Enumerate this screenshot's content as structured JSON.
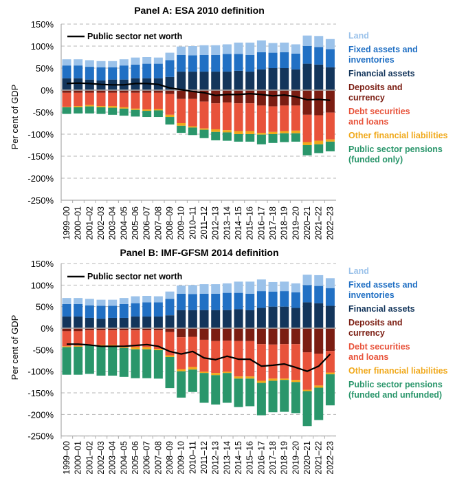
{
  "chart_data": [
    {
      "type": "bar",
      "stacked": true,
      "title": "Panel A: ESA 2010 definition",
      "ylabel": "Per cent of GDP",
      "ylim": [
        -250,
        150
      ],
      "yticks": [
        "150%",
        "100%",
        "50%",
        "0%",
        "-50%",
        "-100%",
        "-150%",
        "-200%",
        "-250%"
      ],
      "ytick_values": [
        150,
        100,
        50,
        0,
        -50,
        -100,
        -150,
        -200,
        -250
      ],
      "grid": true,
      "legend_placement": "right",
      "categories": [
        "1999–00",
        "2000–01",
        "2001–02",
        "2002–03",
        "2003–04",
        "2004–05",
        "2005–06",
        "2006–07",
        "2007–08",
        "2008–09",
        "2009–10",
        "2010–11",
        "2011–12",
        "2012–13",
        "2013–14",
        "2014–15",
        "2015–16",
        "2016–17",
        "2017–18",
        "2018–19",
        "2019–20",
        "2020–21",
        "2021–22",
        "2022–23"
      ],
      "series": [
        {
          "name": "Financial assets",
          "color": "#13355b",
          "values": [
            27,
            27,
            24,
            22,
            24,
            24,
            27,
            27,
            27,
            30,
            42,
            42,
            42,
            42,
            42,
            44,
            42,
            47,
            50,
            50,
            47,
            60,
            58,
            52
          ]
        },
        {
          "name": "Fixed assets and inventories",
          "color": "#2170c4",
          "values": [
            29,
            29,
            29,
            30,
            28,
            32,
            31,
            33,
            33,
            38,
            38,
            37,
            38,
            38,
            40,
            38,
            38,
            39,
            35,
            36,
            36,
            40,
            40,
            41
          ]
        },
        {
          "name": "Land",
          "color": "#9bc2ea",
          "values": [
            14,
            14,
            15,
            14,
            14,
            14,
            16,
            15,
            14,
            17,
            19,
            21,
            22,
            22,
            22,
            26,
            28,
            27,
            22,
            22,
            21,
            24,
            25,
            23
          ]
        },
        {
          "name": "Deposits and currency",
          "color": "#7b1d12",
          "values": [
            -6,
            -6,
            -6,
            -6,
            -6,
            -6,
            -6,
            -6,
            -6,
            -9,
            -20,
            -20,
            -26,
            -30,
            -28,
            -30,
            -30,
            -35,
            -37,
            -35,
            -35,
            -56,
            -57,
            -51
          ]
        },
        {
          "name": "Debt securities and loans",
          "color": "#e8533b",
          "values": [
            -32,
            -30,
            -28,
            -30,
            -30,
            -33,
            -36,
            -38,
            -37,
            -47,
            -55,
            -62,
            -61,
            -59,
            -63,
            -63,
            -63,
            -62,
            -58,
            -58,
            -57,
            -62,
            -58,
            -61
          ]
        },
        {
          "name": "Other financial liabilities",
          "color": "#f0a91c",
          "values": [
            -1,
            -3,
            -3,
            -3,
            -4,
            -3,
            -3,
            -3,
            -3,
            -5,
            -6,
            -3,
            -3,
            -6,
            -5,
            -7,
            -7,
            -4,
            -5,
            -5,
            -6,
            -7,
            -8,
            -5
          ]
        },
        {
          "name": "Public sector pensions (funded only)",
          "color": "#2a966b",
          "values": [
            -15,
            -14,
            -16,
            -15,
            -16,
            -16,
            -15,
            -14,
            -15,
            -17,
            -16,
            -17,
            -19,
            -19,
            -19,
            -17,
            -17,
            -22,
            -20,
            -20,
            -19,
            -23,
            -20,
            -22
          ]
        }
      ],
      "line": {
        "name": "Public sector net worth",
        "color": "#000000",
        "values": [
          15,
          16,
          15,
          13,
          12,
          12,
          15,
          15,
          13,
          5,
          1,
          -3,
          -6,
          -12,
          -10,
          -10,
          -8,
          -10,
          -13,
          -11,
          -15,
          -22,
          -21,
          -23
        ]
      },
      "legend_lines": [
        [
          "Land"
        ],
        [
          "Fixed assets and",
          "inventories"
        ],
        [
          "Financial assets"
        ],
        [
          "Deposits and",
          "currency"
        ],
        [
          "Debt securities",
          "and loans"
        ],
        [
          "Other financial liabilities"
        ],
        [
          "Public sector pensions",
          "(funded only)"
        ]
      ]
    },
    {
      "type": "bar",
      "stacked": true,
      "title": "Panel B: IMF-GFSM 2014 definition",
      "ylabel": "Per cent of GDP",
      "ylim": [
        -250,
        150
      ],
      "yticks": [
        "150%",
        "100%",
        "50%",
        "0%",
        "-50%",
        "-100%",
        "-150%",
        "-200%",
        "-250%"
      ],
      "ytick_values": [
        150,
        100,
        50,
        0,
        -50,
        -100,
        -150,
        -200,
        -250
      ],
      "grid": true,
      "legend_placement": "right",
      "categories": [
        "1999–00",
        "2000–01",
        "2001–02",
        "2002–03",
        "2003–04",
        "2004–05",
        "2005–06",
        "2006–07",
        "2007–08",
        "2008–09",
        "2009–10",
        "2010–11",
        "2011–12",
        "2012–13",
        "2013–14",
        "2014–15",
        "2015–16",
        "2016–17",
        "2017–18",
        "2018–19",
        "2019–20",
        "2020–21",
        "2021–22",
        "2022–23"
      ],
      "series": [
        {
          "name": "Financial assets",
          "color": "#13355b",
          "values": [
            27,
            27,
            24,
            22,
            24,
            24,
            27,
            27,
            27,
            30,
            42,
            42,
            42,
            42,
            42,
            44,
            42,
            47,
            50,
            50,
            47,
            60,
            58,
            52
          ]
        },
        {
          "name": "Fixed assets and inventories",
          "color": "#2170c4",
          "values": [
            29,
            29,
            29,
            30,
            28,
            32,
            31,
            33,
            33,
            38,
            38,
            37,
            38,
            38,
            40,
            38,
            38,
            39,
            35,
            36,
            36,
            40,
            40,
            41
          ]
        },
        {
          "name": "Land",
          "color": "#9bc2ea",
          "values": [
            14,
            14,
            15,
            14,
            14,
            14,
            16,
            15,
            14,
            17,
            19,
            21,
            22,
            22,
            22,
            26,
            28,
            27,
            22,
            22,
            21,
            24,
            25,
            23
          ]
        },
        {
          "name": "Deposits and currency",
          "color": "#7b1d12",
          "values": [
            -7,
            -7,
            -5,
            -5,
            -5,
            -5,
            -5,
            -5,
            -5,
            -9,
            -21,
            -20,
            -27,
            -30,
            -29,
            -30,
            -30,
            -37,
            -38,
            -37,
            -37,
            -56,
            -59,
            -53
          ]
        },
        {
          "name": "Debt securities and loans",
          "color": "#e8533b",
          "values": [
            -35,
            -34,
            -33,
            -34,
            -34,
            -39,
            -39,
            -39,
            -43,
            -54,
            -74,
            -70,
            -74,
            -74,
            -72,
            -82,
            -82,
            -85,
            -79,
            -80,
            -83,
            -87,
            -74,
            -50
          ]
        },
        {
          "name": "Other financial liabilities",
          "color": "#f0a91c",
          "values": [
            -2,
            -2,
            -2,
            -2,
            -2,
            -2,
            -5,
            -5,
            -3,
            -4,
            -5,
            -6,
            -3,
            -5,
            -3,
            -5,
            -5,
            -5,
            -5,
            -3,
            -5,
            -3,
            -5,
            -4
          ]
        },
        {
          "name": "Public sector pensions (funded and unfunded)",
          "color": "#2a966b",
          "values": [
            -64,
            -65,
            -66,
            -69,
            -69,
            -67,
            -67,
            -67,
            -66,
            -72,
            -61,
            -52,
            -69,
            -68,
            -69,
            -66,
            -64,
            -75,
            -73,
            -74,
            -72,
            -81,
            -75,
            -72
          ]
        }
      ],
      "line": {
        "name": "Public sector net worth",
        "color": "#000000",
        "values": [
          -37,
          -37,
          -39,
          -42,
          -42,
          -42,
          -40,
          -38,
          -42,
          -54,
          -60,
          -54,
          -69,
          -73,
          -65,
          -72,
          -72,
          -88,
          -86,
          -83,
          -91,
          -100,
          -88,
          -60
        ]
      },
      "legend_lines": [
        [
          "Land"
        ],
        [
          "Fixed assets and",
          "inventories"
        ],
        [
          "Financial assets"
        ],
        [
          "Deposits and",
          "currency"
        ],
        [
          "Debt securities",
          "and loans"
        ],
        [
          "Other financial liabilities"
        ],
        [
          "Public sector pensions",
          "(funded and unfunded)"
        ]
      ]
    }
  ]
}
